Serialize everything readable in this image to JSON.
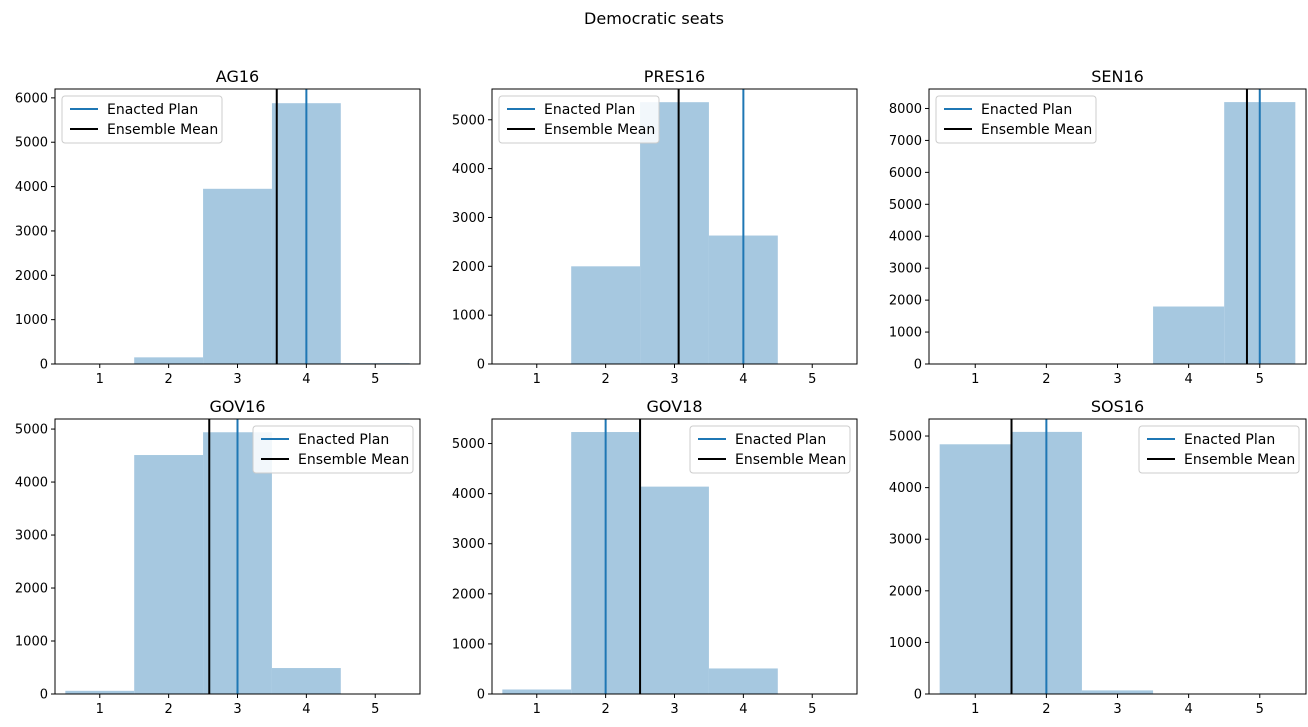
{
  "suptitle": "Democratic seats",
  "colors": {
    "bar": "#a6c8e0",
    "enacted": "#1f77b4",
    "mean": "#000000"
  },
  "chart_data": [
    {
      "type": "bar",
      "title": "AG16",
      "categories": [
        1,
        2,
        3,
        4,
        5
      ],
      "values": [
        0,
        150,
        3950,
        5880,
        20
      ],
      "enacted_plan": 4,
      "ensemble_mean": 3.57,
      "xlim": [
        0.35,
        5.65
      ],
      "ylim": [
        0,
        6200
      ],
      "yticks": [
        0,
        1000,
        2000,
        3000,
        4000,
        5000,
        6000
      ],
      "xticks": [
        1,
        2,
        3,
        4,
        5
      ],
      "legend": {
        "position": "upper-left",
        "entries": [
          "Enacted Plan",
          "Ensemble Mean"
        ]
      }
    },
    {
      "type": "bar",
      "title": "PRES16",
      "categories": [
        1,
        2,
        3,
        4,
        5
      ],
      "values": [
        0,
        2000,
        5360,
        2630,
        0
      ],
      "enacted_plan": 4,
      "ensemble_mean": 3.06,
      "xlim": [
        0.35,
        5.65
      ],
      "ylim": [
        0,
        5630
      ],
      "yticks": [
        0,
        1000,
        2000,
        3000,
        4000,
        5000
      ],
      "xticks": [
        1,
        2,
        3,
        4,
        5
      ],
      "legend": {
        "position": "upper-left",
        "entries": [
          "Enacted Plan",
          "Ensemble Mean"
        ]
      }
    },
    {
      "type": "bar",
      "title": "SEN16",
      "categories": [
        1,
        2,
        3,
        4,
        5
      ],
      "values": [
        0,
        0,
        0,
        1800,
        8200
      ],
      "enacted_plan": 5,
      "ensemble_mean": 4.82,
      "xlim": [
        0.35,
        5.65
      ],
      "ylim": [
        0,
        8610
      ],
      "yticks": [
        0,
        1000,
        2000,
        3000,
        4000,
        5000,
        6000,
        7000,
        8000
      ],
      "xticks": [
        1,
        2,
        3,
        4,
        5
      ],
      "legend": {
        "position": "upper-left",
        "entries": [
          "Enacted Plan",
          "Ensemble Mean"
        ]
      }
    },
    {
      "type": "bar",
      "title": "GOV16",
      "categories": [
        1,
        2,
        3,
        4,
        5
      ],
      "values": [
        60,
        4510,
        4940,
        490,
        0
      ],
      "enacted_plan": 3,
      "ensemble_mean": 2.59,
      "xlim": [
        0.35,
        5.65
      ],
      "ylim": [
        0,
        5190
      ],
      "yticks": [
        0,
        1000,
        2000,
        3000,
        4000,
        5000
      ],
      "xticks": [
        1,
        2,
        3,
        4,
        5
      ],
      "legend": {
        "position": "upper-right",
        "entries": [
          "Enacted Plan",
          "Ensemble Mean"
        ]
      }
    },
    {
      "type": "bar",
      "title": "GOV18",
      "categories": [
        1,
        2,
        3,
        4,
        5
      ],
      "values": [
        90,
        5230,
        4140,
        510,
        0
      ],
      "enacted_plan": 2,
      "ensemble_mean": 2.5,
      "xlim": [
        0.35,
        5.65
      ],
      "ylim": [
        0,
        5490
      ],
      "yticks": [
        0,
        1000,
        2000,
        3000,
        4000,
        5000
      ],
      "xticks": [
        1,
        2,
        3,
        4,
        5
      ],
      "legend": {
        "position": "upper-right",
        "entries": [
          "Enacted Plan",
          "Ensemble Mean"
        ]
      }
    },
    {
      "type": "bar",
      "title": "SOS16",
      "categories": [
        1,
        2,
        3,
        4,
        5
      ],
      "values": [
        4840,
        5080,
        70,
        0,
        0
      ],
      "enacted_plan": 2,
      "ensemble_mean": 1.51,
      "xlim": [
        0.35,
        5.65
      ],
      "ylim": [
        0,
        5330
      ],
      "yticks": [
        0,
        1000,
        2000,
        3000,
        4000,
        5000
      ],
      "xticks": [
        1,
        2,
        3,
        4,
        5
      ],
      "legend": {
        "position": "upper-right",
        "entries": [
          "Enacted Plan",
          "Ensemble Mean"
        ]
      }
    }
  ]
}
